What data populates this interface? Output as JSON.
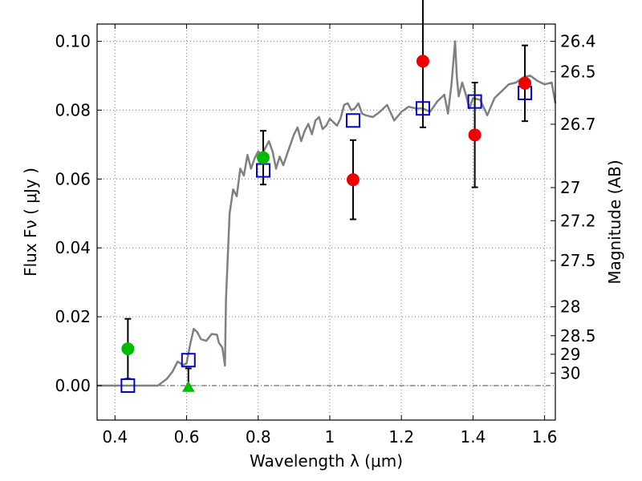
{
  "chart_data": {
    "type": "scatter",
    "title": "",
    "xlabel": "Wavelength  λ (μm)",
    "ylabel": "Flux  Fν  ( μJy )",
    "y2label": "Magnitude (AB)",
    "xlim": [
      0.35,
      1.63
    ],
    "ylim": [
      -0.01,
      0.105
    ],
    "grid": true,
    "legend": "none",
    "x_ticks": [
      0.4,
      0.6,
      0.8,
      1.0,
      1.2,
      1.4,
      1.6
    ],
    "x_tick_labels": [
      "0.4",
      "0.6",
      "0.8",
      "1",
      "1.2",
      "1.4",
      "1.6"
    ],
    "y_ticks": [
      0.0,
      0.02,
      0.04,
      0.06,
      0.08,
      0.1
    ],
    "y_tick_labels": [
      "0.00",
      "0.02",
      "0.04",
      "0.06",
      "0.08",
      "0.10"
    ],
    "y2_ticks": [
      {
        "label": "26.4",
        "flux": 0.1
      },
      {
        "label": "26.5",
        "flux": 0.0912
      },
      {
        "label": "26.7",
        "flux": 0.0759
      },
      {
        "label": "27",
        "flux": 0.0575
      },
      {
        "label": "27.2",
        "flux": 0.0479
      },
      {
        "label": "27.5",
        "flux": 0.0363
      },
      {
        "label": "28",
        "flux": 0.0229
      },
      {
        "label": "28.5",
        "flux": 0.0145
      },
      {
        "label": "29",
        "flux": 0.0091
      },
      {
        "label": "30",
        "flux": 0.0036
      }
    ],
    "colors": {
      "model": "#808080",
      "synthetic": "#0000cc",
      "green_points": "#00bb00",
      "red_points": "#ee0000",
      "errorbar": "#000000",
      "grid": "#808080"
    },
    "model_sed": {
      "x": [
        0.35,
        0.52,
        0.545,
        0.56,
        0.575,
        0.59,
        0.6,
        0.61,
        0.62,
        0.63,
        0.64,
        0.655,
        0.67,
        0.685,
        0.69,
        0.7,
        0.707,
        0.71,
        0.72,
        0.73,
        0.74,
        0.75,
        0.76,
        0.77,
        0.78,
        0.79,
        0.8,
        0.81,
        0.82,
        0.83,
        0.84,
        0.85,
        0.86,
        0.87,
        0.88,
        0.89,
        0.9,
        0.91,
        0.92,
        0.93,
        0.94,
        0.95,
        0.96,
        0.97,
        0.98,
        0.99,
        1.0,
        1.01,
        1.02,
        1.03,
        1.04,
        1.05,
        1.06,
        1.07,
        1.08,
        1.09,
        1.1,
        1.12,
        1.14,
        1.16,
        1.18,
        1.2,
        1.22,
        1.24,
        1.26,
        1.28,
        1.3,
        1.32,
        1.33,
        1.34,
        1.35,
        1.355,
        1.36,
        1.37,
        1.38,
        1.39,
        1.4,
        1.42,
        1.44,
        1.46,
        1.48,
        1.5,
        1.52,
        1.54,
        1.56,
        1.58,
        1.6,
        1.62,
        1.63
      ],
      "y": [
        0.0,
        0.0,
        0.002,
        0.004,
        0.007,
        0.006,
        0.0065,
        0.012,
        0.0165,
        0.0155,
        0.0135,
        0.013,
        0.015,
        0.0148,
        0.0125,
        0.011,
        0.0058,
        0.025,
        0.05,
        0.057,
        0.055,
        0.063,
        0.061,
        0.067,
        0.063,
        0.066,
        0.068,
        0.067,
        0.069,
        0.071,
        0.068,
        0.063,
        0.0665,
        0.064,
        0.067,
        0.07,
        0.073,
        0.075,
        0.071,
        0.074,
        0.076,
        0.073,
        0.077,
        0.078,
        0.0745,
        0.0755,
        0.0775,
        0.0765,
        0.0755,
        0.0775,
        0.0815,
        0.082,
        0.08,
        0.0805,
        0.082,
        0.079,
        0.0785,
        0.078,
        0.0795,
        0.0815,
        0.077,
        0.0795,
        0.081,
        0.0805,
        0.0805,
        0.0795,
        0.0825,
        0.0845,
        0.079,
        0.0875,
        0.1,
        0.0895,
        0.084,
        0.088,
        0.0845,
        0.0805,
        0.0835,
        0.083,
        0.0785,
        0.0835,
        0.0855,
        0.0875,
        0.088,
        0.0895,
        0.09,
        0.0885,
        0.0875,
        0.088,
        0.082
      ]
    },
    "series": [
      {
        "marker": "open-square",
        "x": [
          0.436,
          0.605,
          0.814,
          1.065,
          1.26,
          1.405,
          1.545
        ],
        "y": [
          0.0,
          0.0074,
          0.0625,
          0.077,
          0.0805,
          0.0825,
          0.085
        ]
      },
      {
        "marker": "green-circle",
        "x": [
          0.436,
          0.814
        ],
        "y": [
          0.0107,
          0.0662
        ],
        "err": [
          0.0087,
          0.0078
        ]
      },
      {
        "marker": "green-triangle",
        "x": [
          0.605
        ],
        "y": [
          -0.0005
        ],
        "err_lower": [
          0.0
        ],
        "err_upper": [
          0.0055
        ]
      },
      {
        "marker": "red-circle",
        "x": [
          1.065,
          1.26,
          1.405,
          1.545
        ],
        "y": [
          0.0598,
          0.0942,
          0.0728,
          0.0878
        ],
        "err": [
          0.0115,
          0.0192,
          0.0152,
          0.011
        ]
      }
    ]
  }
}
